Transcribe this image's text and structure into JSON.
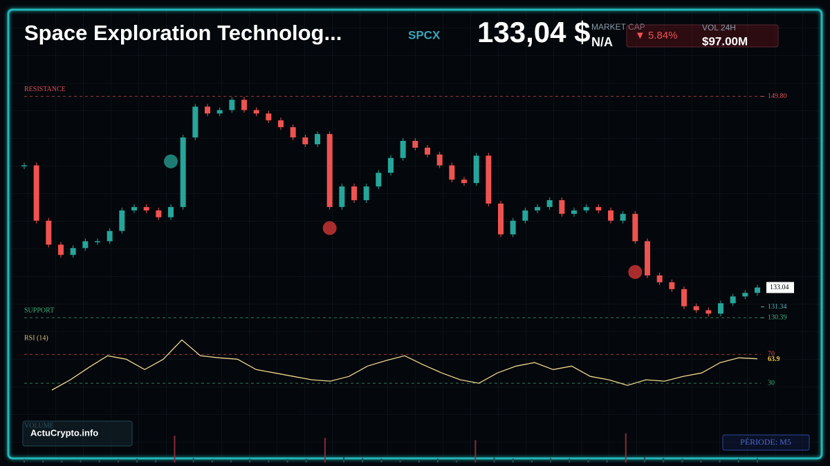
{
  "header": {
    "title": "Space Exploration Technolog...",
    "ticker": "SPCX",
    "price": "133,04 $",
    "market_cap_label": "MARKET CAP",
    "market_cap": "N/A",
    "change": "▼ 5.84%",
    "volume_label": "VOL 24H",
    "volume": "$97.00M"
  },
  "chart_data": [
    {
      "type": "candles",
      "name": "SPCX",
      "values": [
        143.75,
        138.9,
        136.8,
        135.9,
        136.5,
        137.1,
        137.1,
        138.0,
        139.8,
        140.1,
        139.8,
        139.2,
        140.1,
        146.2,
        148.9,
        148.3,
        148.6,
        149.5,
        148.6,
        148.3,
        147.7,
        147.1,
        146.2,
        145.6,
        146.5,
        140.1,
        141.9,
        140.7,
        141.9,
        143.1,
        144.4,
        145.9,
        145.3,
        144.7,
        143.75,
        142.5,
        142.2,
        144.6,
        140.4,
        137.7,
        138.9,
        139.8,
        140.1,
        140.7,
        139.5,
        139.8,
        140.1,
        139.8,
        138.9,
        139.5,
        137.1,
        134.1,
        133.5,
        132.9,
        131.4,
        131.05,
        130.75,
        131.66,
        132.26,
        132.57,
        133.04
      ],
      "up_color": "#26a69a",
      "down_color": "#ef5350",
      "ylim": [
        129.8,
        152.5
      ],
      "yticks": [
        {
          "value": 149.8,
          "label": "149.80"
        },
        131.34,
        130.39
      ],
      "tick_colors": [
        "#e0505a",
        "#4fb0b8",
        "#3fb27f"
      ],
      "annotations": [
        {
          "label": "RESISTANCE",
          "value": 149.8,
          "color": "#e0505a"
        },
        {
          "label": "SUPPORT",
          "value": 130.39,
          "color": "#3fb27f"
        }
      ],
      "markers": [
        {
          "index": 12,
          "value": 144.1,
          "color": "#26a69a"
        },
        {
          "index": 25,
          "value": 138.25,
          "color": "#e03a3a"
        },
        {
          "index": 50,
          "value": 134.4,
          "color": "#e03a3a"
        }
      ]
    },
    {
      "type": "line",
      "name": "RSI (14)",
      "color": "#f0d890",
      "values": [
        20.5,
        34.8,
        52,
        68.1,
        63.3,
        49,
        63.3,
        90,
        68.1,
        65.2,
        63.3,
        49,
        44.3,
        39.5,
        34.8,
        32.9,
        39.5,
        53.8,
        61.4,
        68.1,
        55.7,
        44.3,
        34.8,
        30,
        44.3,
        53.8,
        58.6,
        49,
        53.8,
        39.5,
        34.8,
        27,
        34.8,
        32.9,
        39.5,
        44.3,
        58.6,
        65.2,
        63.9
      ],
      "ylim": [
        10,
        100
      ],
      "yticks": [
        70,
        30
      ],
      "tick_colors": [
        "#e0505a",
        "#3fb27f"
      ]
    },
    {
      "type": "bar",
      "name": "VOLUME",
      "color": "#2a4a52",
      "values": [
        8,
        6,
        5,
        7,
        6,
        8,
        9,
        7,
        60,
        10,
        8,
        7,
        9,
        6,
        8,
        9,
        55,
        12,
        10,
        9,
        8,
        7,
        9,
        8,
        50,
        11,
        9,
        8,
        10,
        9,
        8,
        7,
        65,
        12,
        10,
        9,
        8,
        7,
        9,
        10
      ],
      "spike_color": "#8a2a3a",
      "ylim": [
        0,
        100
      ]
    }
  ],
  "footer": {
    "brand": "ActuCrypto.info",
    "period": "PÉRIODE: M5"
  }
}
